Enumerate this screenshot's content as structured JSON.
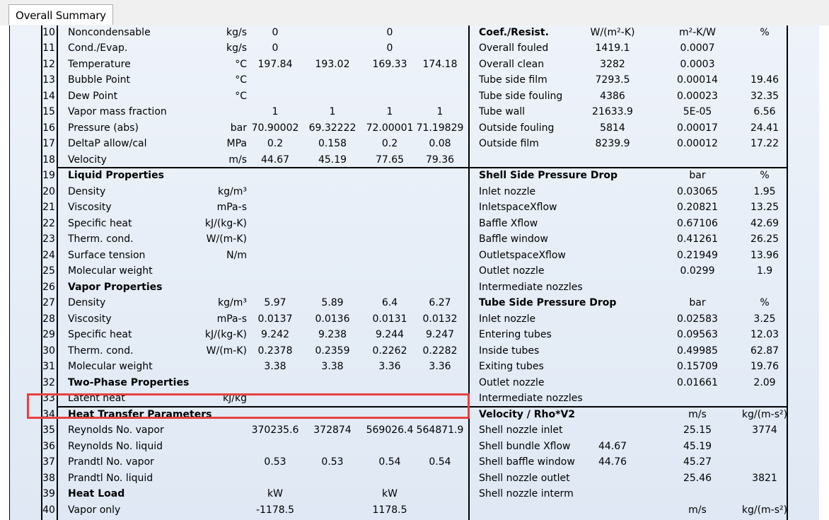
{
  "tabs": [
    {
      "label": "Overall Summary"
    }
  ],
  "rows": [
    {
      "num": "10",
      "label": "Noncondensable",
      "unit": "kg/s",
      "v1": "0",
      "v2": "",
      "v3": "0",
      "v4": "",
      "r0": "Coef./Resist.",
      "r1": "W/(m²-K)",
      "r2": "m²-K/W",
      "r3": "%"
    },
    {
      "num": "11",
      "label": "Cond./Evap.",
      "unit": "kg/s",
      "v1": "0",
      "v2": "",
      "v3": "0",
      "v4": "",
      "r0": "Overall fouled",
      "r1": "1419.1",
      "r2": "0.0007",
      "r3": ""
    },
    {
      "num": "12",
      "label": "Temperature",
      "unit": "°C",
      "v1": "197.84",
      "v2": "193.02",
      "v3": "169.33",
      "v4": "174.18",
      "r0": "Overall clean",
      "r1": "3282",
      "r2": "0.0003",
      "r3": ""
    },
    {
      "num": "13",
      "label": "Bubble Point",
      "unit": "°C",
      "v1": "",
      "v2": "",
      "v3": "",
      "v4": "",
      "r0": "Tube side film",
      "r1": "7293.5",
      "r2": "0.00014",
      "r3": "19.46"
    },
    {
      "num": "14",
      "label": "Dew Point",
      "unit": "°C",
      "v1": "",
      "v2": "",
      "v3": "",
      "v4": "",
      "r0": "Tube side fouling",
      "r1": "4386",
      "r2": "0.00023",
      "r3": "32.35"
    },
    {
      "num": "15",
      "label": "Vapor mass fraction",
      "unit": "",
      "v1": "1",
      "v2": "1",
      "v3": "1",
      "v4": "1",
      "r0": "Tube wall",
      "r1": "21633.9",
      "r2": "5E-05",
      "r3": "6.56"
    },
    {
      "num": "16",
      "label": "Pressure (abs)",
      "unit": "bar",
      "v1": "70.90002",
      "v2": "69.32222",
      "v3": "72.00001",
      "v4": "71.19829",
      "r0": "Outside fouling",
      "r1": "5814",
      "r2": "0.00017",
      "r3": "24.41"
    },
    {
      "num": "17",
      "label": "DeltaP allow/cal",
      "unit": "MPa",
      "v1": "0.2",
      "v2": "0.158",
      "v3": "0.2",
      "v4": "0.08",
      "r0": "Outside film",
      "r1": "8239.9",
      "r2": "0.00012",
      "r3": "17.22"
    },
    {
      "num": "18",
      "label": "Velocity",
      "unit": "m/s",
      "v1": "44.67",
      "v2": "45.19",
      "v3": "77.65",
      "v4": "79.36",
      "r0": "",
      "r1": "",
      "r2": "",
      "r3": ""
    },
    {
      "num": "19",
      "label": "Liquid Properties",
      "unit": "",
      "v1": "",
      "v2": "",
      "v3": "",
      "v4": "",
      "r0": "Shell Side Pressure Drop",
      "r1": "",
      "r2": "bar",
      "r3": "%"
    },
    {
      "num": "20",
      "label": "Density",
      "unit": "kg/m³",
      "v1": "",
      "v2": "",
      "v3": "",
      "v4": "",
      "r0": "Inlet nozzle",
      "r1": "",
      "r2": "0.03065",
      "r3": "1.95"
    },
    {
      "num": "21",
      "label": "Viscosity",
      "unit": "mPa-s",
      "v1": "",
      "v2": "",
      "v3": "",
      "v4": "",
      "r0": "InletspaceXflow",
      "r1": "",
      "r2": "0.20821",
      "r3": "13.25"
    },
    {
      "num": "22",
      "label": "Specific heat",
      "unit": "kJ/(kg-K)",
      "v1": "",
      "v2": "",
      "v3": "",
      "v4": "",
      "r0": "Baffle Xflow",
      "r1": "",
      "r2": "0.67106",
      "r3": "42.69"
    },
    {
      "num": "23",
      "label": "Therm. cond.",
      "unit": "W/(m-K)",
      "v1": "",
      "v2": "",
      "v3": "",
      "v4": "",
      "r0": "Baffle window",
      "r1": "",
      "r2": "0.41261",
      "r3": "26.25"
    },
    {
      "num": "24",
      "label": "Surface tension",
      "unit": "N/m",
      "v1": "",
      "v2": "",
      "v3": "",
      "v4": "",
      "r0": "OutletspaceXflow",
      "r1": "",
      "r2": "0.21949",
      "r3": "13.96"
    },
    {
      "num": "25",
      "label": "Molecular weight",
      "unit": "",
      "v1": "",
      "v2": "",
      "v3": "",
      "v4": "",
      "r0": "Outlet nozzle",
      "r1": "",
      "r2": "0.0299",
      "r3": "1.9"
    },
    {
      "num": "26",
      "label": "Vapor Properties",
      "unit": "",
      "v1": "",
      "v2": "",
      "v3": "",
      "v4": "",
      "r0": "Intermediate nozzles",
      "r1": "",
      "r2": "",
      "r3": ""
    },
    {
      "num": "27",
      "label": "Density",
      "unit": "kg/m³",
      "v1": "5.97",
      "v2": "5.89",
      "v3": "6.4",
      "v4": "6.27",
      "r0": "Tube Side Pressure Drop",
      "r1": "",
      "r2": "bar",
      "r3": "%"
    },
    {
      "num": "28",
      "label": "Viscosity",
      "unit": "mPa-s",
      "v1": "0.0137",
      "v2": "0.0136",
      "v3": "0.0131",
      "v4": "0.0132",
      "r0": "Inlet nozzle",
      "r1": "",
      "r2": "0.02583",
      "r3": "3.25"
    },
    {
      "num": "29",
      "label": "Specific heat",
      "unit": "kJ/(kg-K)",
      "v1": "9.242",
      "v2": "9.238",
      "v3": "9.244",
      "v4": "9.247",
      "r0": "Entering tubes",
      "r1": "",
      "r2": "0.09563",
      "r3": "12.03"
    },
    {
      "num": "30",
      "label": "Therm. cond.",
      "unit": "W/(m-K)",
      "v1": "0.2378",
      "v2": "0.2359",
      "v3": "0.2262",
      "v4": "0.2282",
      "r0": "Inside tubes",
      "r1": "",
      "r2": "0.49985",
      "r3": "62.87"
    },
    {
      "num": "31",
      "label": "Molecular weight",
      "unit": "",
      "v1": "3.38",
      "v2": "3.38",
      "v3": "3.36",
      "v4": "3.36",
      "r0": "Exiting tubes",
      "r1": "",
      "r2": "0.15709",
      "r3": "19.76"
    },
    {
      "num": "32",
      "label": "Two-Phase Properties",
      "unit": "",
      "v1": "",
      "v2": "",
      "v3": "",
      "v4": "",
      "r0": "Outlet nozzle",
      "r1": "",
      "r2": "0.01661",
      "r3": "2.09"
    },
    {
      "num": "33",
      "label": "Latent heat",
      "unit": "kJ/kg",
      "v1": "",
      "v2": "",
      "v3": "",
      "v4": "",
      "r0": "Intermediate nozzles",
      "r1": "",
      "r2": "",
      "r3": ""
    },
    {
      "num": "34",
      "label": "Heat Transfer Parameters",
      "unit": "",
      "v1": "",
      "v2": "",
      "v3": "",
      "v4": "",
      "r0": "Velocity    /   Rho*V2",
      "r1": "",
      "r2": "m/s",
      "r3": "kg/(m-s²)"
    },
    {
      "num": "35",
      "label": "Reynolds No. vapor",
      "unit": "",
      "v1": "370235.6",
      "v2": "372874",
      "v3": "569026.4",
      "v4": "564871.9",
      "r0": "Shell nozzle inlet",
      "r1": "",
      "r2": "25.15",
      "r3": "3774"
    },
    {
      "num": "36",
      "label": "Reynolds No. liquid",
      "unit": "",
      "v1": "",
      "v2": "",
      "v3": "",
      "v4": "",
      "r0": "Shell bundle Xflow",
      "r1": "44.67",
      "r2": "45.19",
      "r3": ""
    },
    {
      "num": "37",
      "label": "Prandtl No. vapor",
      "unit": "",
      "v1": "0.53",
      "v2": "0.53",
      "v3": "0.54",
      "v4": "0.54",
      "r0": "Shell baffle window",
      "r1": "44.76",
      "r2": "45.27",
      "r3": ""
    },
    {
      "num": "38",
      "label": "Prandtl No. liquid",
      "unit": "",
      "v1": "",
      "v2": "",
      "v3": "",
      "v4": "",
      "r0": "Shell nozzle outlet",
      "r1": "",
      "r2": "25.46",
      "r3": "3821"
    },
    {
      "num": "39",
      "label": "Heat  Load",
      "unit": "",
      "v1": "kW",
      "v2": "",
      "v3": "kW",
      "v4": "",
      "r0": "Shell nozzle interm",
      "r1": "",
      "r2": "",
      "r3": ""
    },
    {
      "num": "40",
      "label": "Vapor only",
      "unit": "",
      "v1": "-1178.5",
      "v2": "",
      "v3": "1178.5",
      "v4": "",
      "r0": "",
      "r1": "",
      "r2": "m/s",
      "r3": "kg/(m-s²)"
    }
  ],
  "bold_left": [
    "19",
    "26",
    "32",
    "34",
    "39"
  ],
  "bold_right": [
    "10",
    "19",
    "27",
    "34"
  ]
}
